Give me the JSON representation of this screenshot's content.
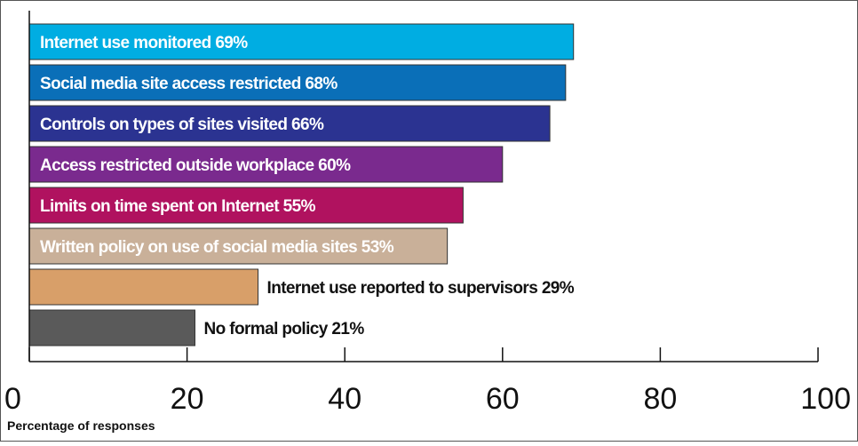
{
  "chart_data": {
    "type": "bar",
    "orientation": "horizontal",
    "title": "",
    "xlabel": "Percentage of responses",
    "ylabel": "",
    "xlim": [
      0,
      100
    ],
    "x_ticks": [
      0,
      20,
      40,
      60,
      80,
      100
    ],
    "grid": false,
    "legend": "none",
    "bars": [
      {
        "label": "Internet use monitored 69%",
        "value": 69,
        "color": "#00ade2",
        "text_color": "#ffffff",
        "label_inside": true
      },
      {
        "label": "Social media site access restricted 68%",
        "value": 68,
        "color": "#0a6fb8",
        "text_color": "#ffffff",
        "label_inside": true
      },
      {
        "label": "Controls on types of sites visited 66%",
        "value": 66,
        "color": "#2b3391",
        "text_color": "#ffffff",
        "label_inside": true
      },
      {
        "label": "Access restricted outside workplace 60%",
        "value": 60,
        "color": "#7a2a8e",
        "text_color": "#ffffff",
        "label_inside": true
      },
      {
        "label": "Limits on time spent on Internet 55%",
        "value": 55,
        "color": "#b0125f",
        "text_color": "#ffffff",
        "label_inside": true
      },
      {
        "label": "Written policy on use of social media sites 53%",
        "value": 53,
        "color": "#c9b099",
        "text_color": "#ffffff",
        "label_inside": true
      },
      {
        "label": "Internet use reported to supervisors 29%",
        "value": 29,
        "color": "#d89f69",
        "text_color": "#111111",
        "label_inside": false
      },
      {
        "label": "No formal policy 21%",
        "value": 21,
        "color": "#5a5a5a",
        "text_color": "#111111",
        "label_inside": false
      }
    ]
  }
}
